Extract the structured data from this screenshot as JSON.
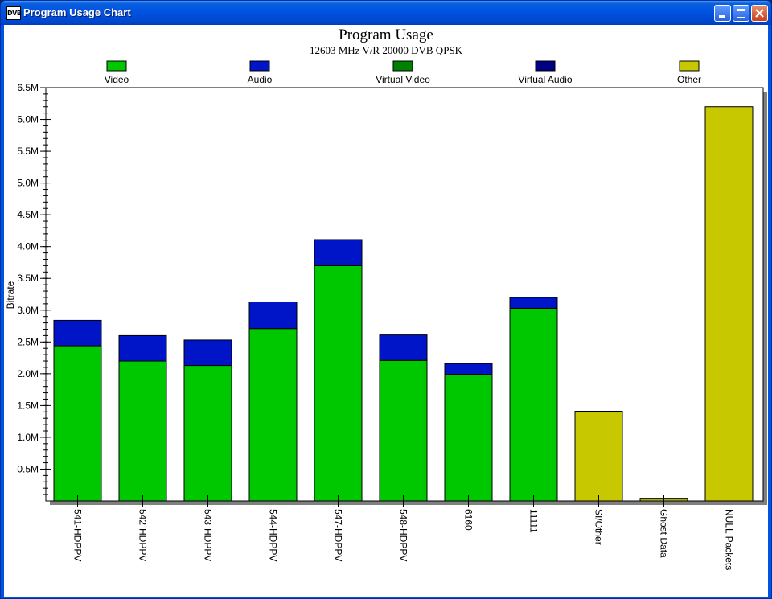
{
  "window": {
    "title": "Program Usage Chart",
    "app_icon_text": "DVB"
  },
  "chart_data": {
    "type": "bar",
    "stacked": true,
    "title": "Program Usage",
    "subtitle": "12603 MHz V/R 20000 DVB QPSK",
    "ylabel": "Bitrate",
    "xlabel": "",
    "ylim": [
      0,
      6.5
    ],
    "yticks": [
      "0.5M",
      "1.0M",
      "1.5M",
      "2.0M",
      "2.5M",
      "3.0M",
      "3.5M",
      "4.0M",
      "4.5M",
      "5.0M",
      "5.5M",
      "6.0M",
      "6.5M"
    ],
    "legend_position": "top",
    "categories": [
      "541-HDPPV",
      "542-HDPPV",
      "543-HDPPV",
      "544-HDPPV",
      "547-HDPPV",
      "548-HDPPV",
      "6160",
      "11111",
      "SI/Other",
      "Ghost Data",
      "NULL Packets"
    ],
    "series": [
      {
        "name": "Video",
        "color": "#00c800",
        "values": [
          2.44,
          2.2,
          2.13,
          2.71,
          3.7,
          2.21,
          1.99,
          3.03,
          0,
          0,
          0
        ]
      },
      {
        "name": "Audio",
        "color": "#0014c8",
        "values": [
          0.4,
          0.4,
          0.4,
          0.42,
          0.41,
          0.4,
          0.17,
          0.17,
          0,
          0,
          0
        ]
      },
      {
        "name": "Virtual Video",
        "color": "#008000",
        "values": [
          0,
          0,
          0,
          0,
          0,
          0,
          0,
          0,
          0,
          0,
          0
        ]
      },
      {
        "name": "Virtual Audio",
        "color": "#000080",
        "values": [
          0,
          0,
          0,
          0,
          0,
          0,
          0,
          0,
          0,
          0,
          0
        ]
      },
      {
        "name": "Other",
        "color": "#c8c800",
        "values": [
          0,
          0,
          0,
          0,
          0,
          0,
          0,
          0,
          1.41,
          0.03,
          6.2
        ]
      }
    ]
  }
}
